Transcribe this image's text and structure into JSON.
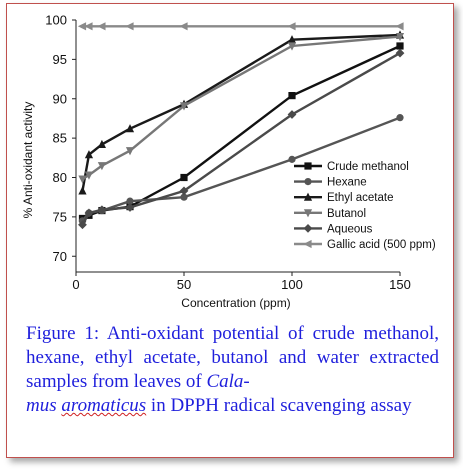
{
  "chart_data": {
    "type": "line",
    "xlabel": "Concentration (ppm)",
    "ylabel": "% Anti-oxidant activity",
    "xlim": [
      0,
      150
    ],
    "ylim": [
      68,
      100
    ],
    "xticks": [
      "0",
      "50",
      "100",
      "150"
    ],
    "yticks": [
      "70",
      "75",
      "80",
      "85",
      "90",
      "95",
      "100"
    ],
    "legend_position": "right",
    "series": [
      {
        "name": "Crude methanol",
        "color": "#111111",
        "marker": "square",
        "x": [
          3,
          6,
          12,
          25,
          50,
          100,
          150
        ],
        "y": [
          74.8,
          75.2,
          75.8,
          76.3,
          80.0,
          90.4,
          96.7
        ]
      },
      {
        "name": "Hexane",
        "color": "#555555",
        "marker": "circle",
        "x": [
          3,
          6,
          12,
          25,
          50,
          100,
          150
        ],
        "y": [
          74.5,
          75.5,
          75.8,
          77.0,
          77.5,
          82.3,
          87.6
        ]
      },
      {
        "name": "Ethyl acetate",
        "color": "#1a1a1a",
        "marker": "triangle-up",
        "x": [
          3,
          6,
          12,
          25,
          50,
          100,
          150
        ],
        "y": [
          78.3,
          82.9,
          84.2,
          86.2,
          89.3,
          97.5,
          98.1
        ]
      },
      {
        "name": "Butanol",
        "color": "#777777",
        "marker": "triangle-down",
        "x": [
          3,
          6,
          12,
          25,
          50,
          100,
          150
        ],
        "y": [
          79.8,
          80.3,
          81.5,
          83.4,
          89.1,
          96.7,
          97.9
        ]
      },
      {
        "name": "Aqueous",
        "color": "#4a4a4a",
        "marker": "diamond",
        "x": [
          3,
          6,
          12,
          25,
          50,
          100,
          150
        ],
        "y": [
          74.0,
          75.5,
          75.9,
          76.2,
          78.3,
          88.0,
          95.8
        ]
      },
      {
        "name": "Gallic acid (500 ppm)",
        "color": "#8a8a8a",
        "marker": "triangle-left",
        "x": [
          3,
          6,
          12,
          25,
          50,
          100,
          150
        ],
        "y": [
          99.2,
          99.2,
          99.2,
          99.2,
          99.2,
          99.2,
          99.2
        ]
      }
    ]
  },
  "caption": {
    "text": "Figure 1: Anti-oxidant potential of crude methanol, hexane, ethyl acetate, butanol and water extracted samples from leaves of",
    "species_part1": "Cala-",
    "species_part2": "mus",
    "species_part3": "aromaticus",
    "tail": "in DPPH radical scavenging assay"
  }
}
